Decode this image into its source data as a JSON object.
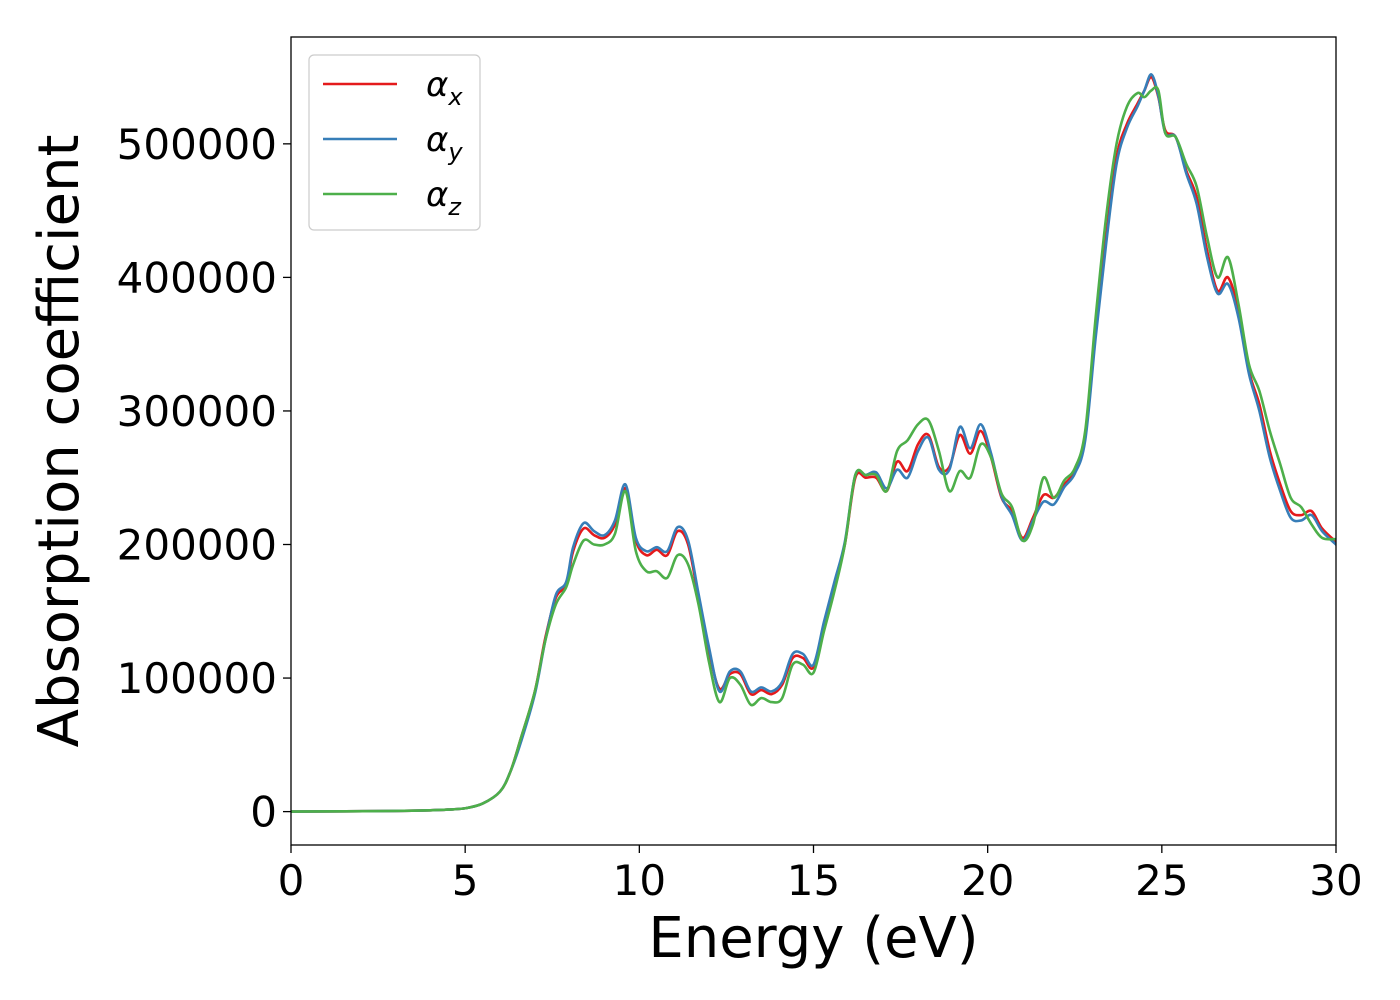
{
  "chart_data": {
    "type": "line",
    "xlabel": "Energy (eV)",
    "ylabel": "Absorption coefficient",
    "xlim": [
      0,
      30
    ],
    "ylim": [
      -25000,
      580000
    ],
    "xticks": [
      0,
      5,
      10,
      15,
      20,
      25,
      30
    ],
    "yticks": [
      0,
      100000,
      200000,
      300000,
      400000,
      500000
    ],
    "grid": false,
    "legend_position": "top-left",
    "series": [
      {
        "name": "α",
        "subscript": "x",
        "color": "#e41a1c",
        "x": [
          0,
          3,
          4,
          4.5,
          5,
          5.5,
          6,
          6.3,
          6.6,
          7,
          7.3,
          7.6,
          7.9,
          8.1,
          8.4,
          8.7,
          9,
          9.3,
          9.6,
          9.9,
          10.2,
          10.5,
          10.8,
          11.1,
          11.4,
          11.7,
          12,
          12.3,
          12.6,
          12.9,
          13.2,
          13.5,
          13.8,
          14.1,
          14.4,
          14.7,
          15,
          15.3,
          15.6,
          15.9,
          16.2,
          16.5,
          16.8,
          17.1,
          17.4,
          17.7,
          18,
          18.3,
          18.6,
          18.9,
          19.2,
          19.5,
          19.8,
          20.1,
          20.4,
          20.7,
          21,
          21.3,
          21.6,
          21.9,
          22.2,
          22.5,
          22.8,
          23.1,
          23.4,
          23.7,
          24,
          24.3,
          24.5,
          24.7,
          24.9,
          25.1,
          25.4,
          25.7,
          26,
          26.3,
          26.6,
          26.9,
          27.2,
          27.5,
          27.8,
          28.1,
          28.4,
          28.7,
          29,
          29.3,
          29.6,
          30
        ],
        "y": [
          0,
          500,
          1000,
          1500,
          2500,
          6000,
          15000,
          30000,
          55000,
          90000,
          130000,
          160000,
          170000,
          195000,
          212000,
          207000,
          205000,
          215000,
          242000,
          203000,
          192000,
          196000,
          192000,
          210000,
          200000,
          160000,
          120000,
          92000,
          103000,
          103000,
          88000,
          91000,
          88000,
          95000,
          115000,
          115000,
          108000,
          140000,
          170000,
          200000,
          250000,
          250000,
          250000,
          240000,
          262000,
          255000,
          275000,
          282000,
          258000,
          258000,
          282000,
          268000,
          285000,
          265000,
          235000,
          225000,
          205000,
          220000,
          237000,
          235000,
          245000,
          255000,
          280000,
          360000,
          430000,
          490000,
          515000,
          530000,
          540000,
          550000,
          535000,
          510000,
          505000,
          480000,
          460000,
          420000,
          390000,
          400000,
          375000,
          330000,
          305000,
          270000,
          245000,
          225000,
          222000,
          225000,
          212000,
          202000
        ]
      },
      {
        "name": "α",
        "subscript": "y",
        "color": "#377eb8",
        "x": [
          0,
          3,
          4,
          4.5,
          5,
          5.5,
          6,
          6.3,
          6.6,
          7,
          7.3,
          7.6,
          7.9,
          8.1,
          8.4,
          8.7,
          9,
          9.3,
          9.6,
          9.9,
          10.2,
          10.5,
          10.8,
          11.1,
          11.4,
          11.7,
          12,
          12.3,
          12.6,
          12.9,
          13.2,
          13.5,
          13.8,
          14.1,
          14.4,
          14.7,
          15,
          15.3,
          15.6,
          15.9,
          16.2,
          16.5,
          16.8,
          17.1,
          17.4,
          17.7,
          18,
          18.3,
          18.6,
          18.9,
          19.2,
          19.5,
          19.8,
          20.1,
          20.4,
          20.7,
          21,
          21.3,
          21.6,
          21.9,
          22.2,
          22.5,
          22.8,
          23.1,
          23.4,
          23.7,
          24,
          24.3,
          24.5,
          24.7,
          24.9,
          25.1,
          25.4,
          25.7,
          26,
          26.3,
          26.6,
          26.9,
          27.2,
          27.5,
          27.8,
          28.1,
          28.4,
          28.7,
          29,
          29.3,
          29.6,
          30
        ],
        "y": [
          0,
          500,
          1000,
          1500,
          2500,
          6000,
          15000,
          30000,
          52000,
          88000,
          128000,
          162000,
          172000,
          198000,
          216000,
          210000,
          207000,
          218000,
          245000,
          205000,
          195000,
          198000,
          195000,
          213000,
          203000,
          163000,
          123000,
          90000,
          105000,
          105000,
          90000,
          93000,
          90000,
          97000,
          118000,
          118000,
          110000,
          142000,
          172000,
          202000,
          252000,
          252000,
          254000,
          242000,
          256000,
          250000,
          270000,
          280000,
          256000,
          256000,
          288000,
          272000,
          290000,
          268000,
          236000,
          222000,
          203000,
          218000,
          232000,
          230000,
          243000,
          253000,
          278000,
          355000,
          425000,
          485000,
          512000,
          528000,
          540000,
          552000,
          536000,
          508000,
          505000,
          478000,
          455000,
          415000,
          388000,
          395000,
          370000,
          328000,
          300000,
          265000,
          240000,
          220000,
          218000,
          222000,
          210000,
          200000
        ]
      },
      {
        "name": "α",
        "subscript": "z",
        "color": "#4daf4a",
        "x": [
          0,
          3,
          4,
          4.5,
          5,
          5.5,
          6,
          6.3,
          6.6,
          7,
          7.3,
          7.6,
          7.9,
          8.1,
          8.4,
          8.7,
          9,
          9.3,
          9.6,
          9.9,
          10.2,
          10.5,
          10.8,
          11.1,
          11.4,
          11.7,
          12,
          12.3,
          12.6,
          12.9,
          13.2,
          13.5,
          13.8,
          14.1,
          14.4,
          14.7,
          15,
          15.3,
          15.6,
          15.9,
          16.2,
          16.5,
          16.8,
          17.1,
          17.4,
          17.7,
          18,
          18.3,
          18.6,
          18.9,
          19.2,
          19.5,
          19.8,
          20.1,
          20.4,
          20.7,
          21,
          21.3,
          21.6,
          21.9,
          22.2,
          22.5,
          22.8,
          23.1,
          23.4,
          23.7,
          24,
          24.3,
          24.5,
          24.7,
          24.9,
          25.1,
          25.4,
          25.7,
          26,
          26.3,
          26.6,
          26.9,
          27.2,
          27.5,
          27.8,
          28.1,
          28.4,
          28.7,
          29,
          29.3,
          29.6,
          30
        ],
        "y": [
          0,
          500,
          1000,
          1500,
          2500,
          6000,
          15000,
          30000,
          55000,
          90000,
          128000,
          155000,
          168000,
          185000,
          203000,
          200000,
          200000,
          208000,
          240000,
          195000,
          180000,
          180000,
          175000,
          192000,
          185000,
          155000,
          112000,
          82000,
          100000,
          95000,
          80000,
          85000,
          82000,
          85000,
          110000,
          110000,
          104000,
          135000,
          165000,
          200000,
          252000,
          252000,
          252000,
          240000,
          270000,
          278000,
          290000,
          293000,
          270000,
          240000,
          255000,
          250000,
          275000,
          265000,
          238000,
          228000,
          203000,
          215000,
          250000,
          235000,
          248000,
          257000,
          285000,
          370000,
          445000,
          500000,
          528000,
          538000,
          535000,
          540000,
          540000,
          508000,
          505000,
          485000,
          468000,
          430000,
          400000,
          415000,
          380000,
          335000,
          315000,
          285000,
          260000,
          235000,
          228000,
          215000,
          205000,
          204000
        ]
      }
    ]
  }
}
